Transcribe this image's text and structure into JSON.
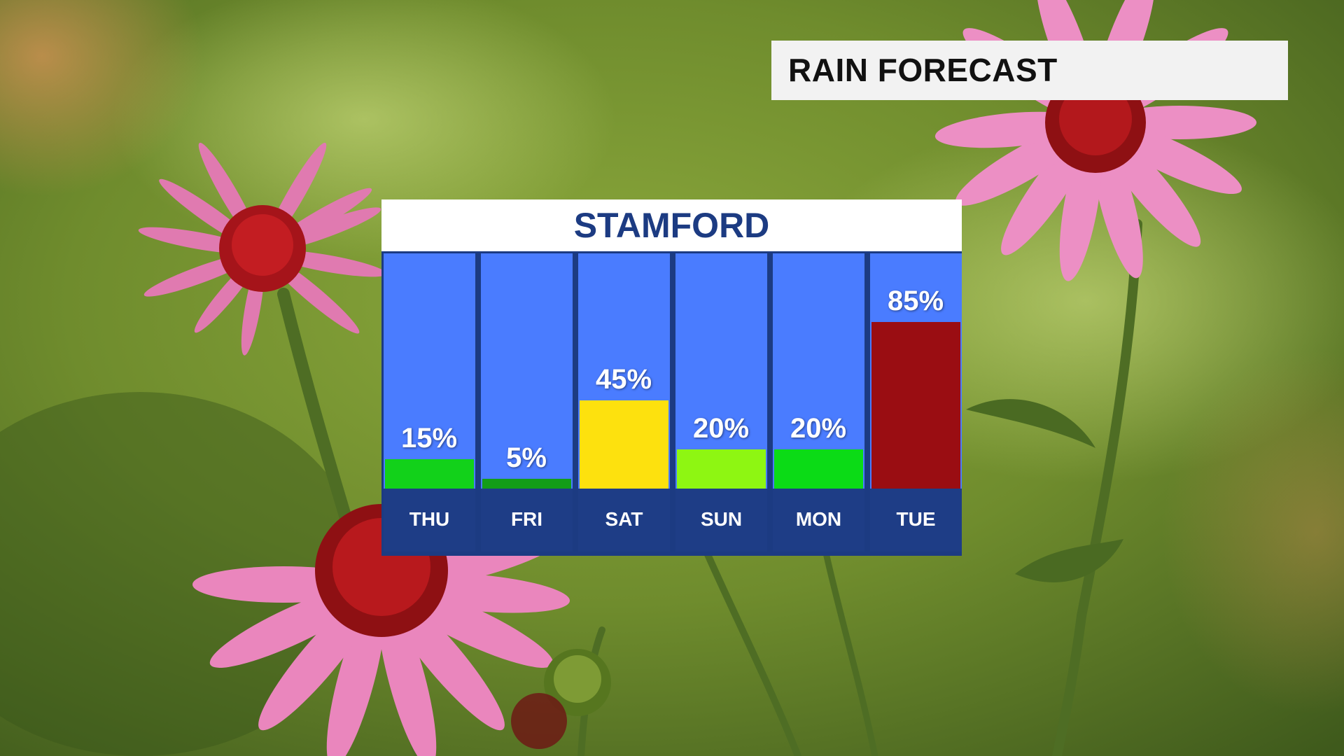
{
  "header": {
    "title": "RAIN FORECAST"
  },
  "chart_data": {
    "type": "bar",
    "title": "STAMFORD",
    "categories": [
      "THU",
      "FRI",
      "SAT",
      "SUN",
      "MON",
      "TUE"
    ],
    "values": [
      15,
      5,
      45,
      20,
      20,
      85
    ],
    "value_labels": [
      "15%",
      "5%",
      "45%",
      "20%",
      "20%",
      "85%"
    ],
    "colors": [
      "#12d11a",
      "#139d17",
      "#fde10e",
      "#8ef612",
      "#0bdb16",
      "#9a0d12"
    ],
    "ylim": [
      0,
      100
    ],
    "xlabel": "",
    "ylabel": "",
    "grid": false
  },
  "colors": {
    "panel_navy": "#1c3b82",
    "column_blue": "#4a7cff",
    "title_box": "#f2f2f2"
  }
}
